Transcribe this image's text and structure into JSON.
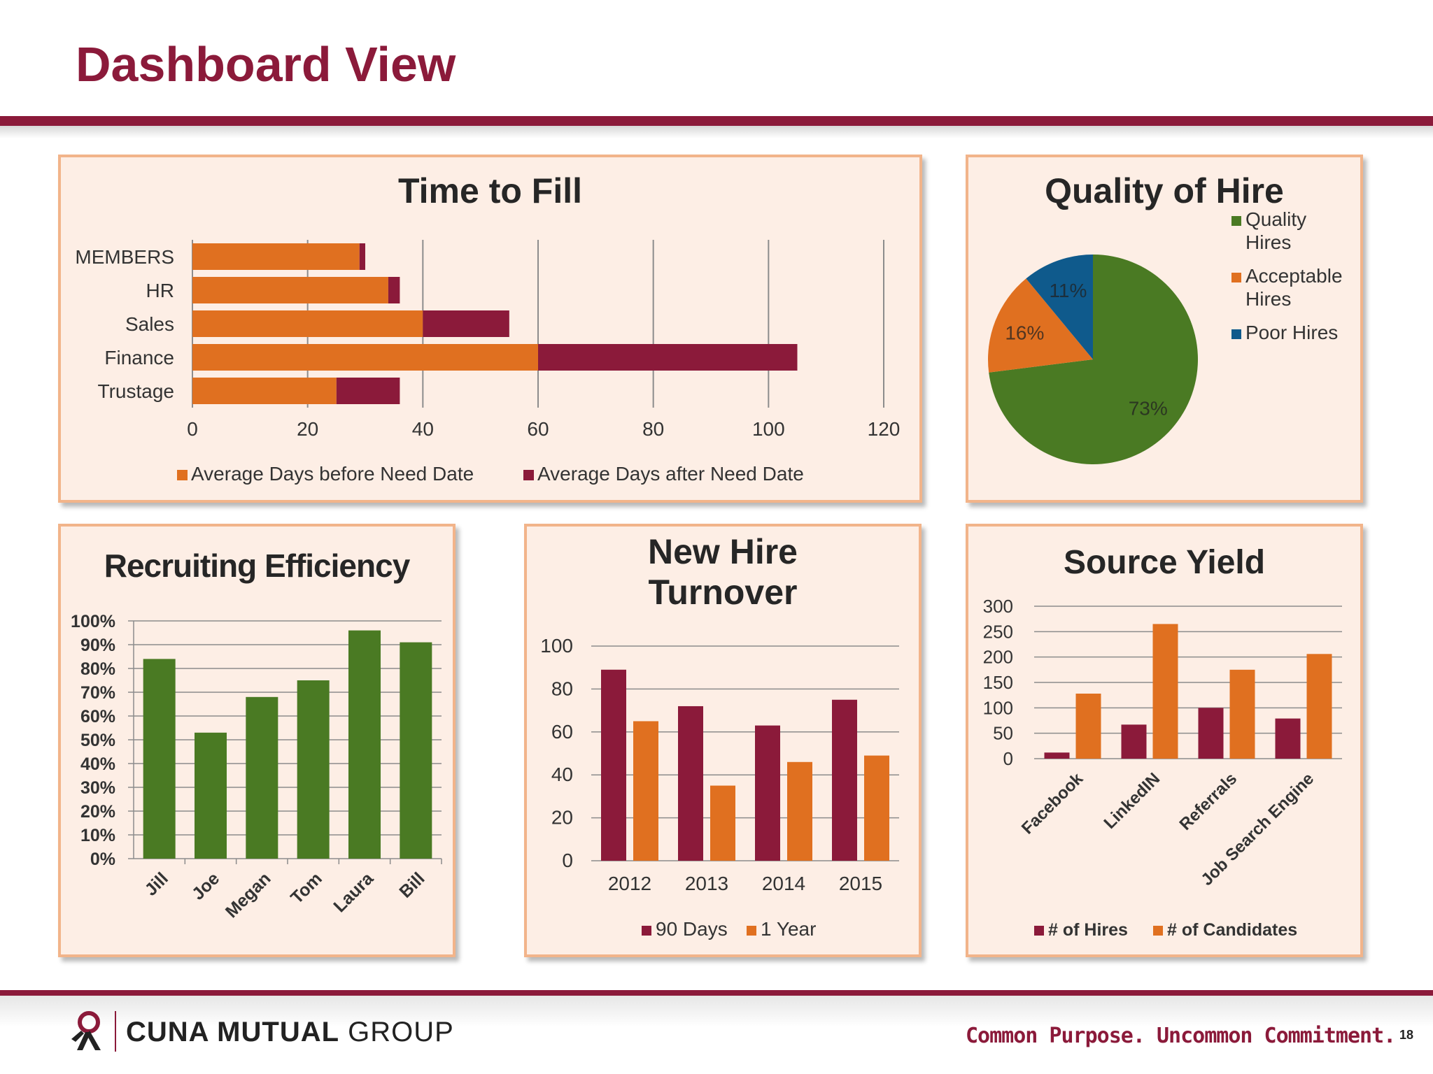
{
  "page": {
    "title": "Dashboard View",
    "page_number": "18"
  },
  "footer": {
    "company_bold": "CUNA MUTUAL",
    "company_light": "GROUP",
    "tagline": "Common Purpose. Uncommon Commitment."
  },
  "colors": {
    "maroon": "#8b1a3a",
    "orange": "#e07020",
    "green": "#4a7a23",
    "blue": "#0f5a8c",
    "panel_bg": "#fdeee5",
    "panel_border": "#f2b48a"
  },
  "chart_data": [
    {
      "id": "time-to-fill",
      "type": "bar",
      "orientation": "horizontal",
      "stacked": true,
      "title": "Time to Fill",
      "categories": [
        "MEMBERS",
        "HR",
        "Sales",
        "Finance",
        "Trustage"
      ],
      "series": [
        {
          "name": "Average Days before Need Date",
          "color": "#e07020",
          "values": [
            29,
            34,
            40,
            60,
            25
          ]
        },
        {
          "name": "Average Days after Need Date",
          "color": "#8b1a3a",
          "values": [
            1,
            2,
            15,
            45,
            11
          ]
        }
      ],
      "xlim": [
        0,
        120
      ],
      "xticks": [
        "0",
        "20",
        "40",
        "60",
        "80",
        "100",
        "120"
      ],
      "grid": true,
      "legend": "bottom"
    },
    {
      "id": "quality-of-hire",
      "type": "pie",
      "title": "Quality of Hire",
      "slices": [
        {
          "name": "Quality Hires",
          "value": 73,
          "label": "73%",
          "color": "#4a7a23"
        },
        {
          "name": "Acceptable Hires",
          "value": 16,
          "label": "16%",
          "color": "#e07020"
        },
        {
          "name": "Poor Hires",
          "value": 11,
          "label": "11%",
          "color": "#0f5a8c"
        }
      ],
      "legend": "right"
    },
    {
      "id": "recruiting-efficiency",
      "type": "bar",
      "title": "Recruiting Efficiency",
      "categories": [
        "Jill",
        "Joe",
        "Megan",
        "Tom",
        "Laura",
        "Bill"
      ],
      "series": [
        {
          "color": "#4a7a23",
          "values": [
            84,
            53,
            68,
            75,
            96,
            91
          ]
        }
      ],
      "ylim": [
        0,
        100
      ],
      "yticks": [
        "0%",
        "10%",
        "20%",
        "30%",
        "40%",
        "50%",
        "60%",
        "70%",
        "80%",
        "90%",
        "100%"
      ],
      "grid": true
    },
    {
      "id": "new-hire-turnover",
      "type": "bar",
      "title_lines": [
        "New Hire",
        "Turnover"
      ],
      "categories": [
        "2012",
        "2013",
        "2014",
        "2015"
      ],
      "series": [
        {
          "name": "90 Days",
          "color": "#8b1a3a",
          "values": [
            89,
            72,
            63,
            75
          ]
        },
        {
          "name": "1 Year",
          "color": "#e07020",
          "values": [
            65,
            35,
            46,
            49
          ]
        }
      ],
      "ylim": [
        0,
        100
      ],
      "yticks": [
        "0",
        "20",
        "40",
        "60",
        "80",
        "100"
      ],
      "grid": true,
      "legend": "bottom"
    },
    {
      "id": "source-yield",
      "type": "bar",
      "title": "Source Yield",
      "categories": [
        "Facebook",
        "LinkedIN",
        "Referrals",
        "Job Search Engine"
      ],
      "series": [
        {
          "name": "# of Hires",
          "color": "#8b1a3a",
          "values": [
            12,
            67,
            100,
            79
          ]
        },
        {
          "name": "# of Candidates",
          "color": "#e07020",
          "values": [
            128,
            265,
            175,
            206
          ]
        }
      ],
      "ylim": [
        0,
        300
      ],
      "yticks": [
        "0",
        "50",
        "100",
        "150",
        "200",
        "250",
        "300"
      ],
      "grid": true,
      "legend": "bottom"
    }
  ]
}
